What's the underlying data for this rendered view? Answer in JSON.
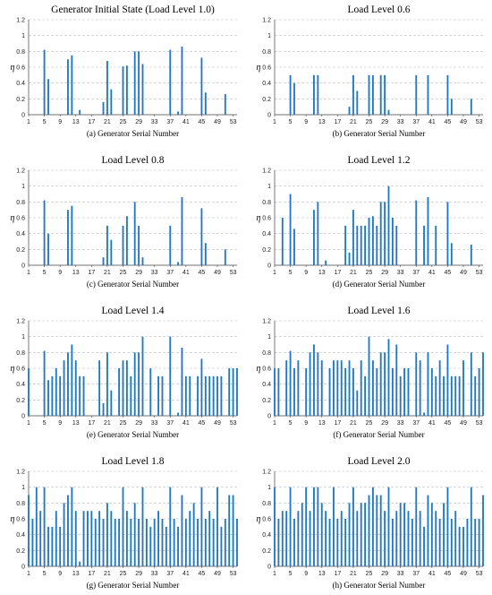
{
  "figure": {
    "colors": {
      "bar": "#1f77c8",
      "grid": "#bdbdbd",
      "axis": "#444444"
    }
  },
  "chart_data": [
    {
      "type": "bar",
      "title": "Generator Initial State (Load Level 1.0)",
      "xlabel": "(a) Generator Serial Number",
      "ylabel": "η",
      "ylim": [
        0,
        1
      ],
      "xlim": [
        1,
        54
      ],
      "grid": true,
      "x_ticks": [
        1,
        5,
        9,
        13,
        17,
        21,
        25,
        29,
        33,
        37,
        41,
        45,
        49,
        53
      ],
      "y_ticks": [
        "0",
        "0.2",
        "0.4",
        "0.6",
        "0.8",
        "1",
        "1.2"
      ],
      "bars": [
        [
          5,
          0.82
        ],
        [
          6,
          0.45
        ],
        [
          11,
          0.7
        ],
        [
          12,
          0.75
        ],
        [
          14,
          0.06
        ],
        [
          20,
          0.16
        ],
        [
          21,
          0.68
        ],
        [
          22,
          0.32
        ],
        [
          25,
          0.61
        ],
        [
          26,
          0.62
        ],
        [
          28,
          0.8
        ],
        [
          29,
          0.8
        ],
        [
          30,
          0.64
        ],
        [
          37,
          0.82
        ],
        [
          39,
          0.04
        ],
        [
          40,
          0.86
        ],
        [
          45,
          0.72
        ],
        [
          46,
          0.28
        ],
        [
          51,
          0.26
        ]
      ]
    },
    {
      "type": "bar",
      "title": "Load Level 0.6",
      "xlabel": "(b) Generator Serial Number",
      "ylabel": "η",
      "ylim": [
        0,
        1
      ],
      "xlim": [
        1,
        54
      ],
      "grid": true,
      "x_ticks": [
        1,
        5,
        9,
        13,
        17,
        21,
        25,
        29,
        33,
        37,
        41,
        45,
        49,
        53
      ],
      "y_ticks": [
        "0",
        "0.2",
        "0.4",
        "0.6",
        "0.8",
        "1",
        "1.2"
      ],
      "bars": [
        [
          5,
          0.5
        ],
        [
          6,
          0.4
        ],
        [
          11,
          0.5
        ],
        [
          12,
          0.5
        ],
        [
          20,
          0.1
        ],
        [
          21,
          0.5
        ],
        [
          22,
          0.3
        ],
        [
          25,
          0.5
        ],
        [
          26,
          0.5
        ],
        [
          28,
          0.5
        ],
        [
          29,
          0.5
        ],
        [
          30,
          0.06
        ],
        [
          37,
          0.5
        ],
        [
          40,
          0.5
        ],
        [
          45,
          0.5
        ],
        [
          46,
          0.2
        ],
        [
          51,
          0.2
        ]
      ]
    },
    {
      "type": "bar",
      "title": "Load Level 0.8",
      "xlabel": "(c) Generator Serial Number",
      "ylabel": "η",
      "ylim": [
        0,
        1
      ],
      "xlim": [
        1,
        54
      ],
      "grid": true,
      "x_ticks": [
        1,
        5,
        9,
        13,
        17,
        21,
        25,
        29,
        33,
        37,
        41,
        45,
        49,
        53
      ],
      "y_ticks": [
        "0",
        "0.2",
        "0.4",
        "0.6",
        "0.8",
        "1",
        "1.2"
      ],
      "bars": [
        [
          5,
          0.82
        ],
        [
          6,
          0.4
        ],
        [
          11,
          0.7
        ],
        [
          12,
          0.75
        ],
        [
          20,
          0.1
        ],
        [
          21,
          0.5
        ],
        [
          22,
          0.32
        ],
        [
          25,
          0.5
        ],
        [
          26,
          0.62
        ],
        [
          28,
          0.8
        ],
        [
          29,
          0.5
        ],
        [
          30,
          0.1
        ],
        [
          37,
          0.5
        ],
        [
          39,
          0.04
        ],
        [
          40,
          0.86
        ],
        [
          45,
          0.72
        ],
        [
          46,
          0.28
        ],
        [
          51,
          0.2
        ]
      ]
    },
    {
      "type": "bar",
      "title": "Load Level 1.2",
      "xlabel": "(d) Generator Serial Number",
      "ylabel": "η",
      "ylim": [
        0,
        1
      ],
      "xlim": [
        1,
        54
      ],
      "grid": true,
      "x_ticks": [
        1,
        5,
        9,
        13,
        17,
        21,
        25,
        29,
        33,
        37,
        41,
        45,
        49,
        53
      ],
      "y_ticks": [
        "0",
        "0.2",
        "0.4",
        "0.6",
        "0.8",
        "1",
        "1.2"
      ],
      "bars": [
        [
          3,
          0.6
        ],
        [
          5,
          0.9
        ],
        [
          6,
          0.46
        ],
        [
          11,
          0.7
        ],
        [
          12,
          0.8
        ],
        [
          14,
          0.06
        ],
        [
          19,
          0.5
        ],
        [
          20,
          0.16
        ],
        [
          21,
          0.7
        ],
        [
          22,
          0.5
        ],
        [
          23,
          0.5
        ],
        [
          24,
          0.5
        ],
        [
          25,
          0.6
        ],
        [
          26,
          0.62
        ],
        [
          27,
          0.5
        ],
        [
          28,
          0.8
        ],
        [
          29,
          0.8
        ],
        [
          30,
          1.0
        ],
        [
          31,
          0.6
        ],
        [
          32,
          0.5
        ],
        [
          37,
          0.82
        ],
        [
          39,
          0.5
        ],
        [
          40,
          0.86
        ],
        [
          42,
          0.5
        ],
        [
          45,
          0.8
        ],
        [
          46,
          0.28
        ],
        [
          51,
          0.26
        ]
      ]
    },
    {
      "type": "bar",
      "title": "Load Level 1.4",
      "xlabel": "(e) Generator Serial Number",
      "ylabel": "η",
      "ylim": [
        0,
        1
      ],
      "xlim": [
        1,
        54
      ],
      "grid": true,
      "x_ticks": [
        1,
        5,
        9,
        13,
        17,
        21,
        25,
        29,
        33,
        37,
        41,
        45,
        49,
        53
      ],
      "y_ticks": [
        "0",
        "0.2",
        "0.4",
        "0.6",
        "0.8",
        "1",
        "1.2"
      ],
      "bars": [
        [
          1,
          0.6
        ],
        [
          5,
          0.82
        ],
        [
          6,
          0.45
        ],
        [
          7,
          0.5
        ],
        [
          8,
          0.6
        ],
        [
          9,
          0.5
        ],
        [
          10,
          0.7
        ],
        [
          11,
          0.8
        ],
        [
          12,
          0.9
        ],
        [
          13,
          0.7
        ],
        [
          14,
          0.5
        ],
        [
          15,
          0.5
        ],
        [
          19,
          0.7
        ],
        [
          20,
          0.16
        ],
        [
          21,
          0.8
        ],
        [
          22,
          0.32
        ],
        [
          24,
          0.6
        ],
        [
          25,
          0.7
        ],
        [
          26,
          0.7
        ],
        [
          27,
          0.5
        ],
        [
          28,
          0.8
        ],
        [
          29,
          0.8
        ],
        [
          30,
          1.0
        ],
        [
          32,
          0.6
        ],
        [
          34,
          0.5
        ],
        [
          35,
          0.5
        ],
        [
          37,
          1.0
        ],
        [
          39,
          0.04
        ],
        [
          40,
          0.86
        ],
        [
          41,
          0.5
        ],
        [
          42,
          0.5
        ],
        [
          44,
          0.5
        ],
        [
          45,
          0.72
        ],
        [
          46,
          0.5
        ],
        [
          47,
          0.5
        ],
        [
          48,
          0.5
        ],
        [
          49,
          0.5
        ],
        [
          50,
          0.5
        ],
        [
          52,
          0.6
        ],
        [
          53,
          0.6
        ],
        [
          54,
          0.6
        ]
      ]
    },
    {
      "type": "bar",
      "title": "Load Level 1.6",
      "xlabel": "(f) Generator Serial Number",
      "ylabel": "η",
      "ylim": [
        0,
        1
      ],
      "xlim": [
        1,
        54
      ],
      "grid": true,
      "x_ticks": [
        1,
        5,
        9,
        13,
        17,
        21,
        25,
        29,
        33,
        37,
        41,
        45,
        49,
        53
      ],
      "y_ticks": [
        "0",
        "0.2",
        "0.4",
        "0.6",
        "0.8",
        "1",
        "1.2"
      ],
      "bars": [
        [
          1,
          0.6
        ],
        [
          2,
          0.6
        ],
        [
          4,
          0.7
        ],
        [
          5,
          0.82
        ],
        [
          6,
          0.6
        ],
        [
          7,
          0.7
        ],
        [
          9,
          0.6
        ],
        [
          10,
          0.8
        ],
        [
          11,
          0.9
        ],
        [
          12,
          0.8
        ],
        [
          13,
          0.7
        ],
        [
          15,
          0.6
        ],
        [
          16,
          0.7
        ],
        [
          17,
          0.7
        ],
        [
          18,
          0.7
        ],
        [
          19,
          0.6
        ],
        [
          20,
          0.7
        ],
        [
          21,
          0.6
        ],
        [
          22,
          0.32
        ],
        [
          23,
          0.7
        ],
        [
          24,
          0.5
        ],
        [
          25,
          1.0
        ],
        [
          26,
          0.7
        ],
        [
          27,
          0.6
        ],
        [
          28,
          0.8
        ],
        [
          29,
          0.8
        ],
        [
          30,
          0.97
        ],
        [
          31,
          0.6
        ],
        [
          32,
          0.9
        ],
        [
          33,
          0.5
        ],
        [
          34,
          0.6
        ],
        [
          35,
          0.6
        ],
        [
          37,
          0.8
        ],
        [
          38,
          0.7
        ],
        [
          39,
          0.04
        ],
        [
          40,
          0.8
        ],
        [
          41,
          0.6
        ],
        [
          42,
          0.5
        ],
        [
          43,
          0.7
        ],
        [
          44,
          0.5
        ],
        [
          45,
          0.9
        ],
        [
          46,
          0.5
        ],
        [
          47,
          0.5
        ],
        [
          48,
          0.5
        ],
        [
          49,
          0.7
        ],
        [
          51,
          0.8
        ],
        [
          52,
          0.5
        ],
        [
          53,
          0.6
        ],
        [
          54,
          0.8
        ]
      ]
    },
    {
      "type": "bar",
      "title": "Load Level 1.8",
      "xlabel": "(g) Generator Serial Number",
      "ylabel": "η",
      "ylim": [
        0,
        1
      ],
      "xlim": [
        1,
        54
      ],
      "grid": true,
      "x_ticks": [
        1,
        5,
        9,
        13,
        17,
        21,
        25,
        29,
        33,
        37,
        41,
        45,
        49,
        53
      ],
      "y_ticks": [
        "0",
        "0.2",
        "0.4",
        "0.6",
        "0.8",
        "1",
        "1.2"
      ],
      "bars": [
        [
          1,
          0.9
        ],
        [
          2,
          0.6
        ],
        [
          3,
          1.0
        ],
        [
          4,
          0.7
        ],
        [
          5,
          1.0
        ],
        [
          6,
          0.5
        ],
        [
          7,
          0.5
        ],
        [
          8,
          0.7
        ],
        [
          9,
          0.5
        ],
        [
          10,
          0.8
        ],
        [
          11,
          0.9
        ],
        [
          12,
          1.0
        ],
        [
          13,
          0.7
        ],
        [
          14,
          0.06
        ],
        [
          15,
          0.7
        ],
        [
          16,
          0.7
        ],
        [
          17,
          0.7
        ],
        [
          18,
          0.6
        ],
        [
          19,
          0.7
        ],
        [
          20,
          0.6
        ],
        [
          21,
          0.8
        ],
        [
          22,
          0.7
        ],
        [
          23,
          0.6
        ],
        [
          24,
          0.6
        ],
        [
          25,
          1.0
        ],
        [
          26,
          0.7
        ],
        [
          27,
          0.6
        ],
        [
          28,
          0.8
        ],
        [
          29,
          0.6
        ],
        [
          30,
          1.0
        ],
        [
          31,
          0.6
        ],
        [
          32,
          0.5
        ],
        [
          33,
          0.6
        ],
        [
          34,
          0.7
        ],
        [
          35,
          0.6
        ],
        [
          36,
          0.5
        ],
        [
          37,
          1.0
        ],
        [
          38,
          0.6
        ],
        [
          39,
          0.5
        ],
        [
          40,
          0.9
        ],
        [
          41,
          0.6
        ],
        [
          42,
          0.7
        ],
        [
          43,
          0.8
        ],
        [
          44,
          0.6
        ],
        [
          45,
          1.0
        ],
        [
          46,
          0.6
        ],
        [
          47,
          0.7
        ],
        [
          48,
          0.6
        ],
        [
          49,
          1.0
        ],
        [
          50,
          0.5
        ],
        [
          51,
          0.6
        ],
        [
          52,
          0.9
        ],
        [
          53,
          0.9
        ],
        [
          54,
          0.6
        ]
      ]
    },
    {
      "type": "bar",
      "title": "Load Level 2.0",
      "xlabel": "(h) Generator Serial Number",
      "ylabel": "η",
      "ylim": [
        0,
        1
      ],
      "xlim": [
        1,
        54
      ],
      "grid": true,
      "x_ticks": [
        1,
        5,
        9,
        13,
        17,
        21,
        25,
        29,
        33,
        37,
        41,
        45,
        49,
        53
      ],
      "y_ticks": [
        "0",
        "0.2",
        "0.4",
        "0.6",
        "0.8",
        "1",
        "1.2"
      ],
      "bars": [
        [
          1,
          1.0
        ],
        [
          2,
          0.6
        ],
        [
          3,
          0.7
        ],
        [
          4,
          0.7
        ],
        [
          5,
          1.0
        ],
        [
          6,
          0.6
        ],
        [
          7,
          0.7
        ],
        [
          8,
          0.8
        ],
        [
          9,
          1.0
        ],
        [
          10,
          0.7
        ],
        [
          11,
          1.0
        ],
        [
          12,
          1.0
        ],
        [
          13,
          0.8
        ],
        [
          14,
          0.7
        ],
        [
          15,
          0.6
        ],
        [
          16,
          1.0
        ],
        [
          17,
          0.6
        ],
        [
          18,
          0.7
        ],
        [
          19,
          0.6
        ],
        [
          20,
          0.8
        ],
        [
          21,
          1.0
        ],
        [
          22,
          0.7
        ],
        [
          23,
          0.8
        ],
        [
          24,
          0.8
        ],
        [
          25,
          0.9
        ],
        [
          26,
          1.0
        ],
        [
          27,
          0.9
        ],
        [
          28,
          0.9
        ],
        [
          29,
          0.7
        ],
        [
          30,
          1.0
        ],
        [
          31,
          0.6
        ],
        [
          32,
          0.7
        ],
        [
          33,
          0.8
        ],
        [
          34,
          0.8
        ],
        [
          35,
          0.7
        ],
        [
          36,
          0.6
        ],
        [
          37,
          1.0
        ],
        [
          38,
          0.7
        ],
        [
          39,
          0.5
        ],
        [
          40,
          0.9
        ],
        [
          41,
          0.8
        ],
        [
          42,
          0.7
        ],
        [
          43,
          0.6
        ],
        [
          44,
          0.8
        ],
        [
          45,
          1.0
        ],
        [
          46,
          0.6
        ],
        [
          47,
          0.7
        ],
        [
          48,
          0.5
        ],
        [
          49,
          0.5
        ],
        [
          50,
          0.6
        ],
        [
          51,
          1.0
        ],
        [
          52,
          0.6
        ],
        [
          53,
          0.6
        ],
        [
          54,
          0.9
        ]
      ]
    }
  ]
}
